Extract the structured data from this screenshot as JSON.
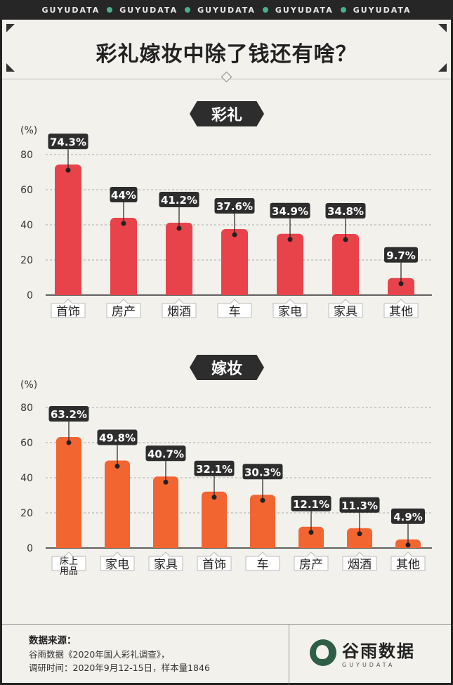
{
  "topbar": {
    "items": [
      "GUYUDATA",
      "GUYUDATA",
      "GUYUDATA",
      "GUYUDATA",
      "GUYUDATA"
    ]
  },
  "header": {
    "title": "彩礼嫁妆中除了钱还有啥？"
  },
  "colors": {
    "caili_bar": "#e8434b",
    "jiazhuang_bar": "#f26531",
    "label_bg": "#2d2d2d",
    "background": "#f3f1ec"
  },
  "chart_data": [
    {
      "type": "bar",
      "title": "彩礼",
      "ylabel": "(%)",
      "ylim": [
        0,
        80
      ],
      "yticks": [
        0,
        20,
        40,
        60,
        80
      ],
      "grid": true,
      "categories": [
        "首饰",
        "房产",
        "烟酒",
        "车",
        "家电",
        "家具",
        "其他"
      ],
      "values": [
        74.3,
        44,
        41.2,
        37.6,
        34.9,
        34.8,
        9.7
      ],
      "value_labels": [
        "74.3%",
        "44%",
        "41.2%",
        "37.6%",
        "34.9%",
        "34.8%",
        "9.7%"
      ]
    },
    {
      "type": "bar",
      "title": "嫁妆",
      "ylabel": "(%)",
      "ylim": [
        0,
        80
      ],
      "yticks": [
        0,
        20,
        40,
        60,
        80
      ],
      "grid": true,
      "categories": [
        "床上\n用品",
        "家电",
        "家具",
        "首饰",
        "车",
        "房产",
        "烟酒",
        "其他"
      ],
      "values": [
        63.2,
        49.8,
        40.7,
        32.1,
        30.3,
        12.1,
        11.3,
        4.9
      ],
      "value_labels": [
        "63.2%",
        "49.8%",
        "40.7%",
        "32.1%",
        "30.3%",
        "12.1%",
        "11.3%",
        "4.9%"
      ]
    }
  ],
  "footer": {
    "source_heading": "数据来源：",
    "source_line1": "谷雨数据《2020年国人彩礼调查》，",
    "source_line2": "调研时间：2020年9月12-15日，样本量1846",
    "brand_cn": "谷雨数据",
    "brand_en": "GUYUDATA"
  }
}
